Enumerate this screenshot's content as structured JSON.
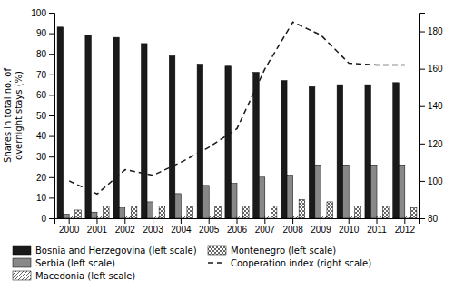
{
  "chart_data": {
    "type": "bar",
    "y_label": "Shares in total no. of\novernight stays (%)",
    "categories": [
      "2000",
      "2001",
      "2002",
      "2003",
      "2004",
      "2005",
      "2006",
      "2007",
      "2008",
      "2009",
      "2010",
      "2011",
      "2012"
    ],
    "series": [
      {
        "name": "Bosnia and Herzegovina (left scale)",
        "color": "#1a1a1a",
        "values": [
          93,
          89,
          88,
          85,
          79,
          75,
          74,
          71,
          67,
          64,
          65,
          65,
          66
        ]
      },
      {
        "name": "Serbia (left scale)",
        "color": "#888888",
        "values": [
          2,
          3,
          5,
          8,
          12,
          16,
          17,
          20,
          21,
          26,
          26,
          26,
          26
        ]
      },
      {
        "name": "Macedonia (left scale)",
        "color": "#ffffff",
        "values": [
          1,
          1,
          1,
          1,
          1,
          1,
          1,
          1,
          1,
          1,
          1,
          1,
          1
        ]
      },
      {
        "name": "Montenegro (left scale)",
        "color": "#ffffff",
        "values": [
          4,
          6,
          6,
          6,
          6,
          6,
          6,
          6,
          9,
          8,
          6,
          6,
          5
        ]
      },
      {
        "name": "Cooperation index (right scale)",
        "type": "line",
        "axis": "y2",
        "color": "#1a1a1a",
        "line_style": "dashed",
        "values": [
          100,
          93,
          106,
          103,
          110,
          118,
          128,
          160,
          185,
          178,
          163,
          162,
          162
        ]
      }
    ],
    "ylim": [
      0,
      100
    ],
    "yticks": [
      0,
      10,
      20,
      30,
      40,
      50,
      60,
      70,
      80,
      90,
      100
    ],
    "y2lim": [
      80,
      190
    ],
    "y2ticks": [
      80,
      100,
      120,
      140,
      160,
      180
    ],
    "grid": false,
    "legend": "bottom"
  }
}
